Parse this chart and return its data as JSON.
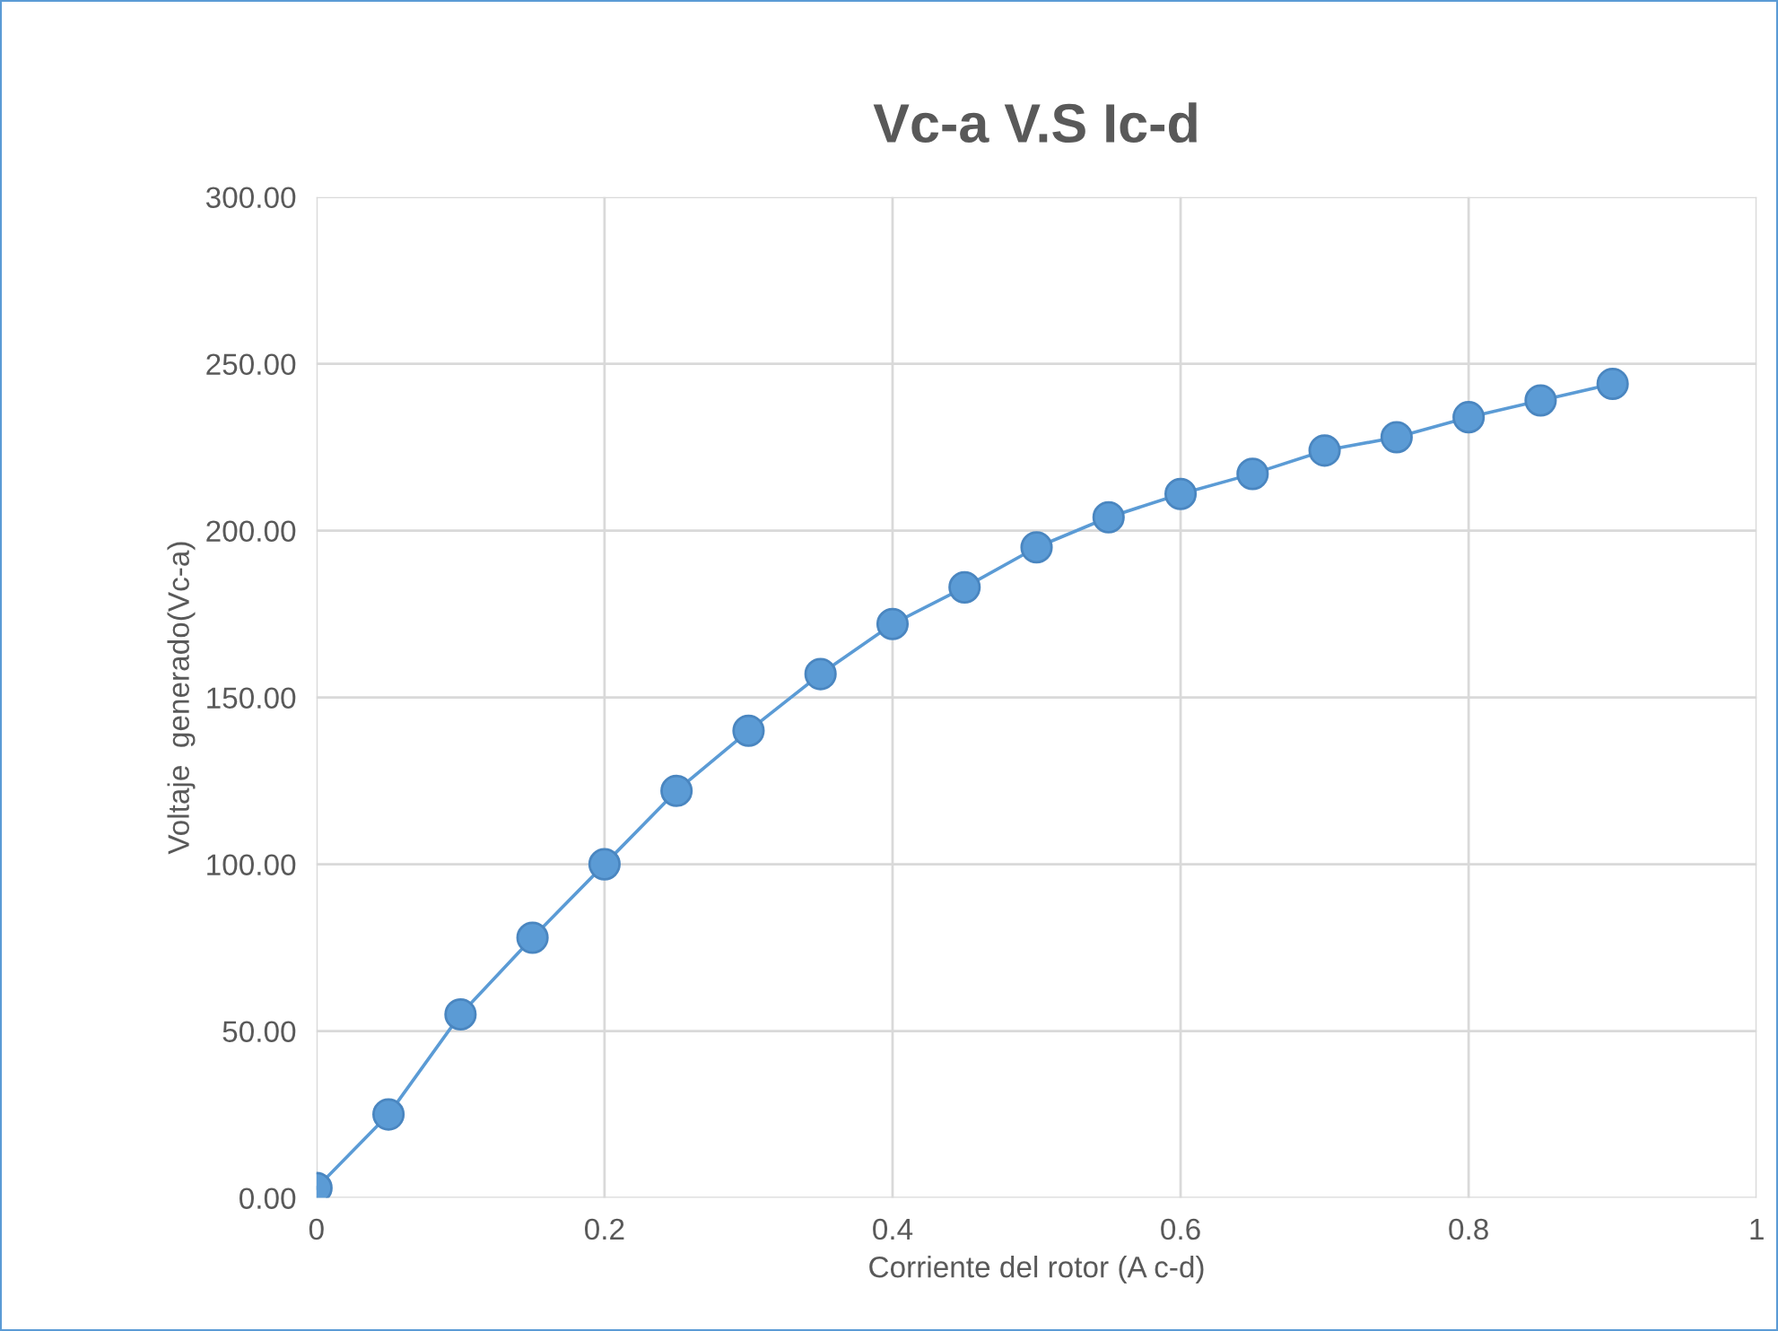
{
  "chart_data": {
    "type": "line",
    "title": "Vc-a V.S Ic-d",
    "xlabel": "Corriente del rotor (A c-d)",
    "ylabel": "Voltaje  generado(Vc-a)",
    "x": [
      0,
      0.05,
      0.1,
      0.15,
      0.2,
      0.25,
      0.3,
      0.35,
      0.4,
      0.45,
      0.5,
      0.55,
      0.6,
      0.65,
      0.7,
      0.75,
      0.8,
      0.85,
      0.9
    ],
    "series": [
      {
        "color": "#5b9bd5",
        "values": [
          3,
          25,
          55,
          78,
          100,
          122,
          140,
          157,
          172,
          183,
          195,
          204,
          211,
          217,
          224,
          228,
          234,
          239,
          244
        ]
      }
    ],
    "xlim": [
      0,
      1
    ],
    "xticks": [
      0,
      0.2,
      0.4,
      0.6,
      0.8,
      1
    ],
    "ylim": [
      0,
      300
    ],
    "yticks": [
      {
        "value": 0,
        "label": "0.00"
      },
      {
        "value": 50,
        "label": "50.00"
      },
      {
        "value": 100,
        "label": "100.00"
      },
      {
        "value": 150,
        "label": "150.00"
      },
      {
        "value": 200,
        "label": "200.00"
      },
      {
        "value": 250,
        "label": "250.00"
      },
      {
        "value": 300,
        "label": "300.00"
      }
    ],
    "grid": true,
    "marker": "circle",
    "line_style": "solid",
    "legend": false
  }
}
